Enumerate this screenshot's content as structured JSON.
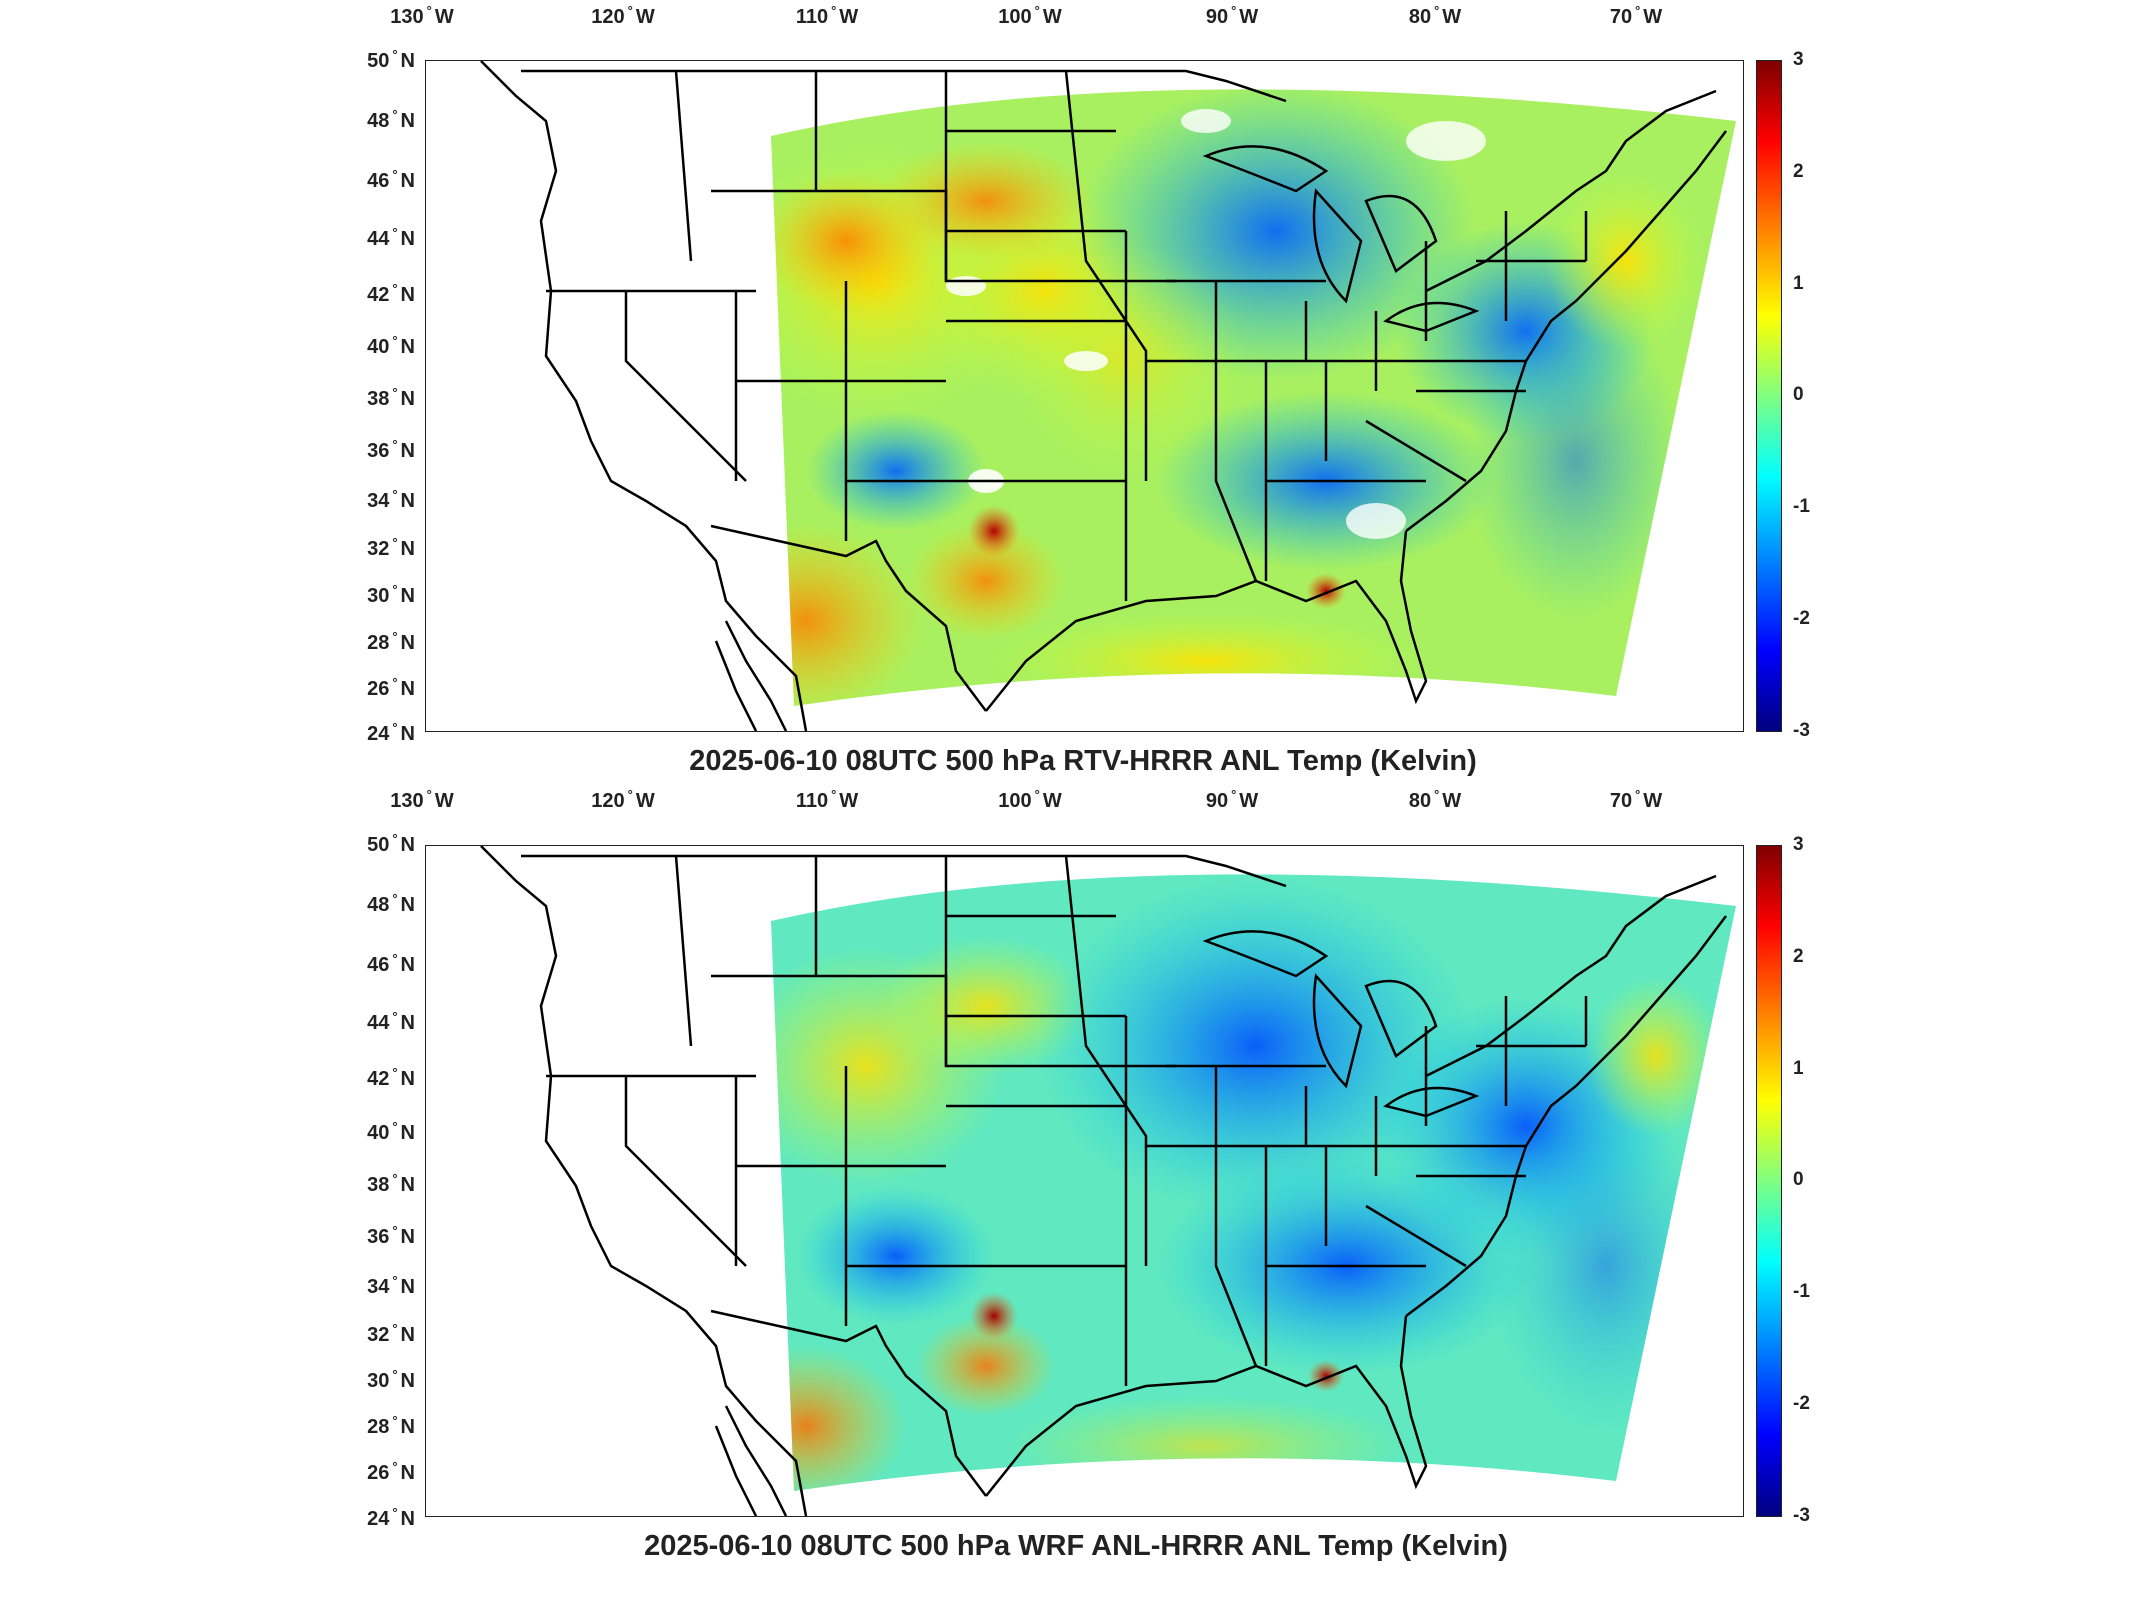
{
  "panels": [
    {
      "title": "2025-06-10 08UTC 500 hPa RTV-HRRR ANL Temp (Kelvin)",
      "lon_ticks": [
        "130",
        "120",
        "110",
        "100",
        "90",
        "80",
        "70"
      ],
      "lon_suffix": "W",
      "lat_ticks": [
        "50",
        "48",
        "46",
        "44",
        "42",
        "40",
        "38",
        "36",
        "34",
        "32",
        "30",
        "28",
        "26",
        "24"
      ],
      "lat_suffix": "N",
      "colorbar_ticks": [
        "3",
        "2",
        "1",
        "0",
        "-1",
        "-2",
        "-3"
      ]
    },
    {
      "title": "2025-06-10 08UTC 500 hPa WRF ANL-HRRR ANL Temp (Kelvin)",
      "lon_ticks": [
        "130",
        "120",
        "110",
        "100",
        "90",
        "80",
        "70"
      ],
      "lon_suffix": "W",
      "lat_ticks": [
        "50",
        "48",
        "46",
        "44",
        "42",
        "40",
        "38",
        "36",
        "34",
        "32",
        "30",
        "28",
        "26",
        "24"
      ],
      "lat_suffix": "N",
      "colorbar_ticks": [
        "3",
        "2",
        "1",
        "0",
        "-1",
        "-2",
        "-3"
      ]
    }
  ],
  "colormap": {
    "name": "jet",
    "min": -3,
    "max": 3,
    "colors": [
      "#00007f",
      "#0000ff",
      "#0080ff",
      "#00ffff",
      "#80ff80",
      "#ffff00",
      "#ff8000",
      "#ff0000",
      "#7f0000"
    ]
  }
}
